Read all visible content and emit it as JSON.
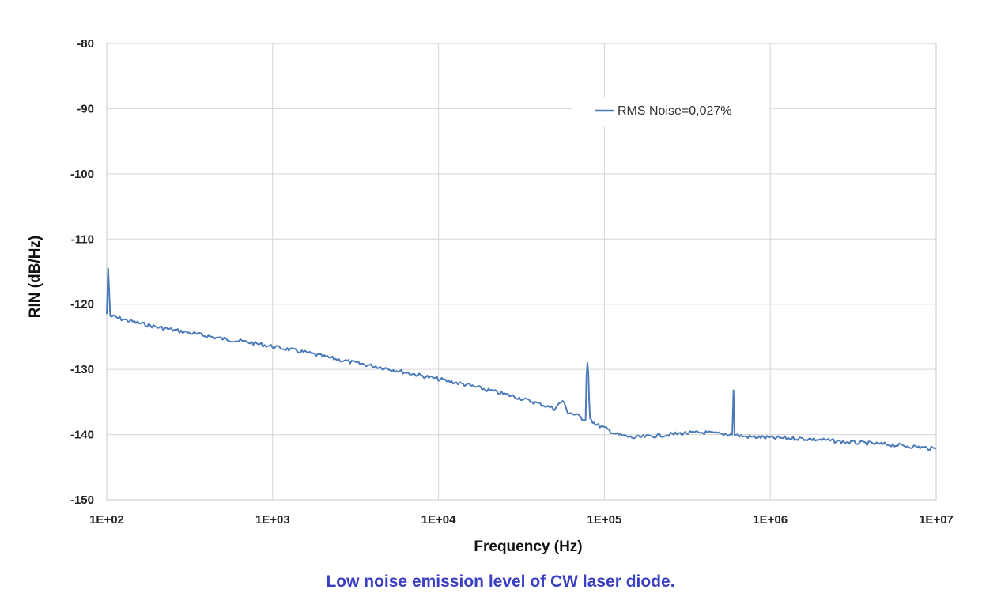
{
  "caption": "Low noise emission level of CW laser diode.",
  "chart_data": {
    "type": "line",
    "title": "",
    "xlabel": "Frequency (Hz)",
    "ylabel": "RIN (dB/Hz)",
    "x_scale": "log",
    "xlim": [
      100,
      10000000
    ],
    "ylim": [
      -150,
      -80
    ],
    "xticks": [
      "1E+02",
      "1E+03",
      "1E+04",
      "1E+05",
      "1E+06",
      "1E+07"
    ],
    "yticks": [
      "-80",
      "-90",
      "-100",
      "-110",
      "-120",
      "-130",
      "-140",
      "-150"
    ],
    "grid": true,
    "legend_position": "top-right",
    "series": [
      {
        "name": "RMS Noise=0,027%",
        "color": "#4a7ab8",
        "x": [
          100,
          102,
          105,
          120,
          150,
          200,
          300,
          500,
          700,
          1000,
          1500,
          2000,
          3000,
          5000,
          7000,
          10000,
          15000,
          20000,
          30000,
          50000,
          56000,
          60000,
          70000,
          77000,
          78000,
          79000,
          80000,
          81000,
          82000,
          85000,
          90000,
          100000,
          120000,
          150000,
          200000,
          300000,
          400000,
          500000,
          590000,
          600000,
          610000,
          700000,
          1000000,
          1500000,
          2000000,
          3000000,
          5000000,
          7000000,
          10000000
        ],
        "y": [
          -121.5,
          -114.5,
          -121.8,
          -122.2,
          -122.8,
          -123.5,
          -124.3,
          -125.3,
          -125.8,
          -126.5,
          -127.3,
          -128.0,
          -128.9,
          -129.9,
          -130.7,
          -131.5,
          -132.4,
          -133.2,
          -134.3,
          -136.0,
          -134.8,
          -136.5,
          -137.2,
          -137.8,
          -131.0,
          -129.0,
          -130.5,
          -135.0,
          -137.5,
          -138.0,
          -138.5,
          -139.0,
          -140.0,
          -140.5,
          -140.2,
          -139.8,
          -139.7,
          -139.9,
          -140.0,
          -133.2,
          -140.0,
          -140.3,
          -140.5,
          -140.6,
          -140.8,
          -141.2,
          -141.5,
          -141.8,
          -142.2
        ]
      }
    ]
  }
}
